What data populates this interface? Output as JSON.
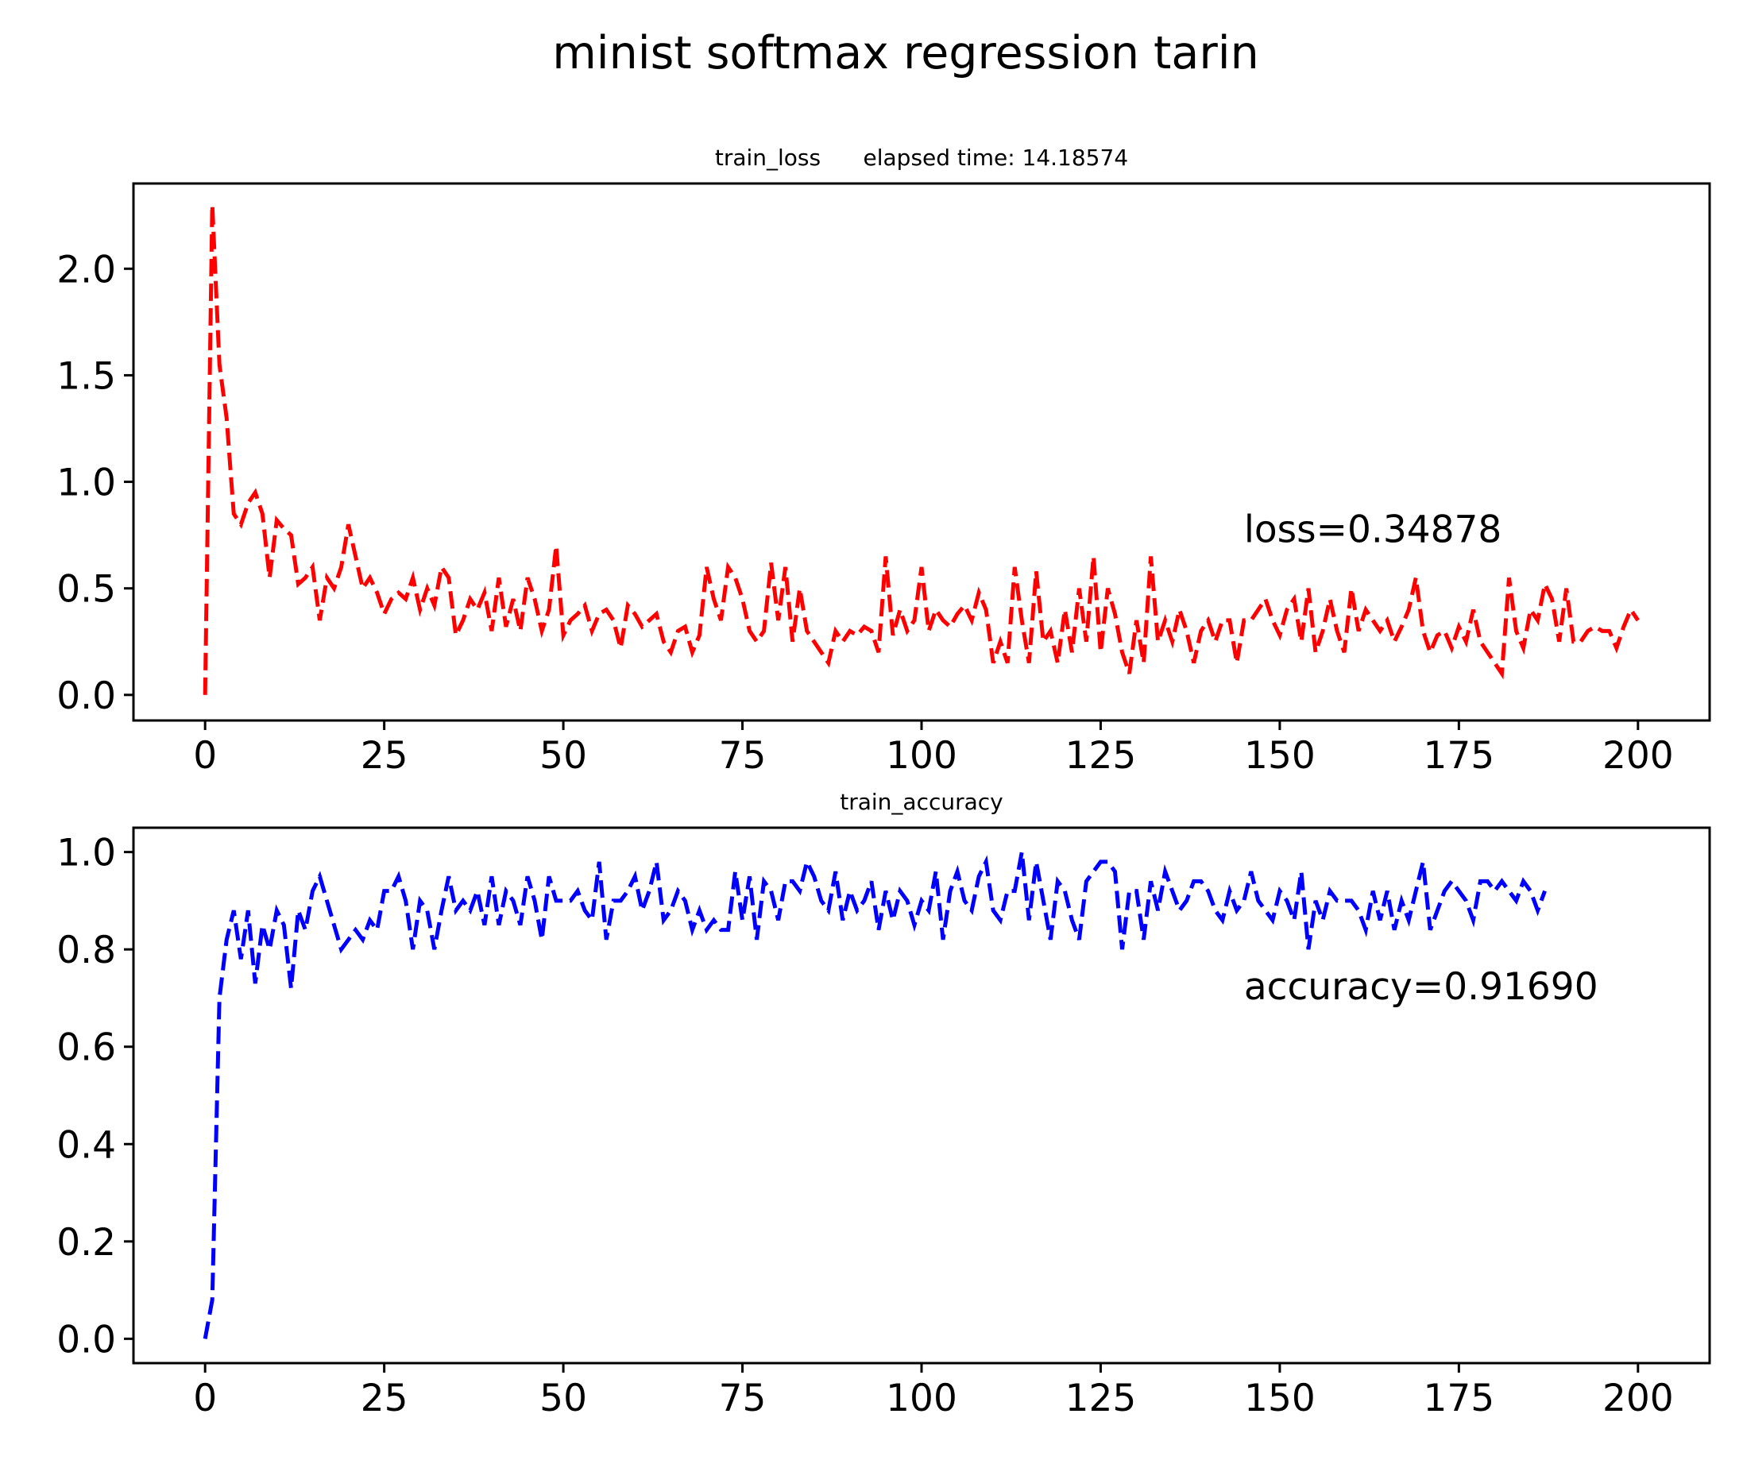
{
  "figure": {
    "suptitle": "minist softmax regression tarin"
  },
  "chart_data": [
    {
      "type": "line",
      "title": "train_loss      elapsed time: 14.18574",
      "xlabel": "",
      "ylabel": "",
      "xlim": [
        -10,
        210
      ],
      "ylim": [
        -0.12,
        2.4
      ],
      "xticks": [
        0,
        25,
        50,
        75,
        100,
        125,
        150,
        175,
        200
      ],
      "xtick_labels": [
        "0",
        "25",
        "50",
        "75",
        "100",
        "125",
        "150",
        "175",
        "200"
      ],
      "yticks": [
        0.0,
        0.5,
        1.0,
        1.5,
        2.0
      ],
      "ytick_labels": [
        "0.0",
        "0.5",
        "1.0",
        "1.5",
        "2.0"
      ],
      "grid": false,
      "annotation": {
        "text": "loss=0.34878",
        "x": 145,
        "y": 0.78
      },
      "series": [
        {
          "color": "#ff0000",
          "linestyle": "dashed",
          "x_start": 0,
          "x_step": 1,
          "values": [
            0.0,
            2.3,
            1.55,
            1.3,
            0.85,
            0.8,
            0.9,
            0.95,
            0.85,
            0.55,
            0.82,
            0.78,
            0.75,
            0.52,
            0.55,
            0.6,
            0.35,
            0.55,
            0.5,
            0.6,
            0.8,
            0.65,
            0.5,
            0.55,
            0.48,
            0.38,
            0.45,
            0.48,
            0.45,
            0.55,
            0.4,
            0.5,
            0.42,
            0.6,
            0.55,
            0.28,
            0.35,
            0.45,
            0.4,
            0.48,
            0.3,
            0.55,
            0.32,
            0.45,
            0.3,
            0.55,
            0.45,
            0.3,
            0.4,
            0.7,
            0.28,
            0.35,
            0.38,
            0.42,
            0.3,
            0.38,
            0.4,
            0.35,
            0.22,
            0.42,
            0.38,
            0.32,
            0.35,
            0.38,
            0.25,
            0.2,
            0.3,
            0.32,
            0.2,
            0.28,
            0.6,
            0.45,
            0.35,
            0.6,
            0.55,
            0.45,
            0.3,
            0.25,
            0.3,
            0.62,
            0.35,
            0.6,
            0.25,
            0.5,
            0.3,
            0.25,
            0.2,
            0.15,
            0.3,
            0.25,
            0.3,
            0.28,
            0.32,
            0.3,
            0.2,
            0.65,
            0.28,
            0.4,
            0.3,
            0.35,
            0.6,
            0.3,
            0.4,
            0.35,
            0.32,
            0.38,
            0.42,
            0.35,
            0.48,
            0.4,
            0.15,
            0.25,
            0.15,
            0.6,
            0.35,
            0.15,
            0.58,
            0.25,
            0.3,
            0.15,
            0.4,
            0.2,
            0.5,
            0.25,
            0.65,
            0.2,
            0.5,
            0.38,
            0.2,
            0.1,
            0.35,
            0.15,
            0.65,
            0.25,
            0.35,
            0.25,
            0.4,
            0.3,
            0.15,
            0.3,
            0.35,
            0.25,
            0.35,
            0.35,
            0.15,
            0.35,
            0.35,
            0.4,
            0.45,
            0.35,
            0.28,
            0.4,
            0.45,
            0.25,
            0.5,
            0.2,
            0.3,
            0.45,
            0.3,
            0.2,
            0.5,
            0.3,
            0.4,
            0.35,
            0.3,
            0.35,
            0.25,
            0.32,
            0.4,
            0.55,
            0.3,
            0.2,
            0.28,
            0.3,
            0.22,
            0.32,
            0.25,
            0.4,
            0.25,
            0.2,
            0.15,
            0.1,
            0.55,
            0.3,
            0.22,
            0.4,
            0.35,
            0.52,
            0.45,
            0.25,
            0.5,
            0.25,
            0.25,
            0.3,
            0.32,
            0.3,
            0.3,
            0.22,
            0.32,
            0.4,
            0.35
          ]
        }
      ]
    },
    {
      "type": "line",
      "title": "train_accuracy",
      "xlabel": "",
      "ylabel": "",
      "xlim": [
        -10,
        210
      ],
      "ylim": [
        -0.05,
        1.05
      ],
      "xticks": [
        0,
        25,
        50,
        75,
        100,
        125,
        150,
        175,
        200
      ],
      "xtick_labels": [
        "0",
        "25",
        "50",
        "75",
        "100",
        "125",
        "150",
        "175",
        "200"
      ],
      "yticks": [
        0.0,
        0.2,
        0.4,
        0.6,
        0.8,
        1.0
      ],
      "ytick_labels": [
        "0.0",
        "0.2",
        "0.4",
        "0.6",
        "0.8",
        "1.0"
      ],
      "grid": false,
      "annotation": {
        "text": "accuracy=0.91690",
        "x": 145,
        "y": 0.725
      },
      "series": [
        {
          "color": "#0000ff",
          "linestyle": "dashed",
          "x_start": 0,
          "x_step": 1,
          "values": [
            0.0,
            0.08,
            0.7,
            0.82,
            0.88,
            0.78,
            0.88,
            0.73,
            0.85,
            0.8,
            0.88,
            0.85,
            0.72,
            0.88,
            0.84,
            0.92,
            0.95,
            0.9,
            0.85,
            0.8,
            0.82,
            0.84,
            0.82,
            0.86,
            0.84,
            0.92,
            0.92,
            0.95,
            0.9,
            0.8,
            0.9,
            0.88,
            0.8,
            0.88,
            0.95,
            0.88,
            0.9,
            0.88,
            0.92,
            0.85,
            0.95,
            0.85,
            0.92,
            0.9,
            0.85,
            0.95,
            0.9,
            0.82,
            0.95,
            0.9,
            0.9,
            0.9,
            0.92,
            0.88,
            0.86,
            0.98,
            0.82,
            0.9,
            0.9,
            0.92,
            0.95,
            0.88,
            0.92,
            0.98,
            0.86,
            0.88,
            0.92,
            0.9,
            0.84,
            0.88,
            0.84,
            0.86,
            0.84,
            0.84,
            0.96,
            0.86,
            0.95,
            0.82,
            0.94,
            0.92,
            0.86,
            0.94,
            0.94,
            0.92,
            0.98,
            0.95,
            0.9,
            0.88,
            0.96,
            0.86,
            0.92,
            0.88,
            0.9,
            0.94,
            0.84,
            0.92,
            0.86,
            0.92,
            0.9,
            0.85,
            0.9,
            0.88,
            0.96,
            0.82,
            0.92,
            0.96,
            0.9,
            0.88,
            0.95,
            0.98,
            0.88,
            0.86,
            0.92,
            0.92,
            1.0,
            0.86,
            0.98,
            0.9,
            0.82,
            0.94,
            0.92,
            0.86,
            0.82,
            0.94,
            0.96,
            0.98,
            0.98,
            0.96,
            0.8,
            0.92,
            0.92,
            0.82,
            0.94,
            0.88,
            0.96,
            0.92,
            0.88,
            0.9,
            0.94,
            0.94,
            0.92,
            0.88,
            0.86,
            0.92,
            0.88,
            0.9,
            0.96,
            0.9,
            0.88,
            0.86,
            0.92,
            0.9,
            0.86,
            0.96,
            0.8,
            0.9,
            0.86,
            0.92,
            0.9,
            0.9,
            0.9,
            0.88,
            0.84,
            0.92,
            0.86,
            0.92,
            0.84,
            0.9,
            0.86,
            0.92,
            0.98,
            0.84,
            0.88,
            0.92,
            0.94,
            0.92,
            0.9,
            0.86,
            0.94,
            0.94,
            0.92,
            0.94,
            0.92,
            0.9,
            0.94,
            0.92,
            0.88,
            0.92
          ]
        }
      ]
    }
  ]
}
